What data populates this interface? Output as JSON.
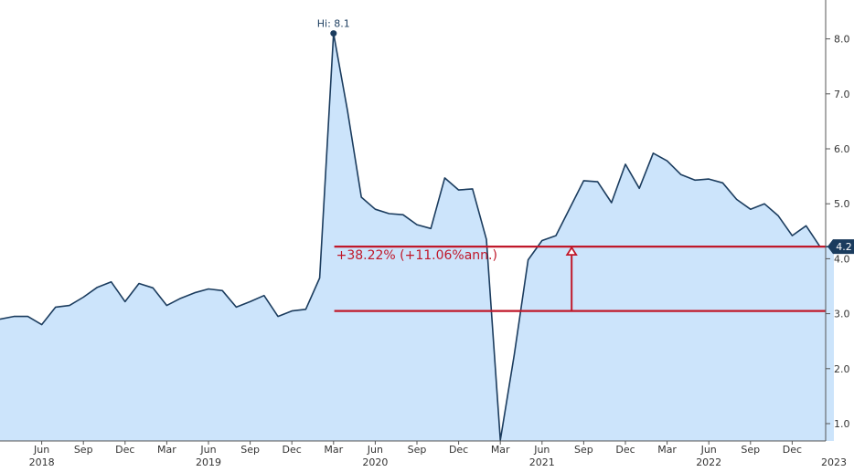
{
  "chart_data": {
    "type": "area",
    "x": [
      "2018-03",
      "2018-04",
      "2018-05",
      "2018-06",
      "2018-07",
      "2018-08",
      "2018-09",
      "2018-10",
      "2018-11",
      "2018-12",
      "2019-01",
      "2019-02",
      "2019-03",
      "2019-04",
      "2019-05",
      "2019-06",
      "2019-07",
      "2019-08",
      "2019-09",
      "2019-10",
      "2019-11",
      "2019-12",
      "2020-01",
      "2020-02",
      "2020-03",
      "2020-04",
      "2020-05",
      "2020-06",
      "2020-07",
      "2020-08",
      "2020-09",
      "2020-10",
      "2020-11",
      "2020-12",
      "2021-01",
      "2021-02",
      "2021-03",
      "2021-04",
      "2021-05",
      "2021-06",
      "2021-07",
      "2021-08",
      "2021-09",
      "2021-10",
      "2021-11",
      "2021-12",
      "2022-01",
      "2022-02",
      "2022-03",
      "2022-04",
      "2022-05",
      "2022-06",
      "2022-07",
      "2022-08",
      "2022-09",
      "2022-10",
      "2022-11",
      "2022-12",
      "2023-01",
      "2023-02",
      "2023-03"
    ],
    "series": [
      {
        "values": [
          2.9,
          2.95,
          2.95,
          2.8,
          3.12,
          3.15,
          3.3,
          3.48,
          3.58,
          3.22,
          3.55,
          3.47,
          3.15,
          3.28,
          3.38,
          3.45,
          3.42,
          3.12,
          3.22,
          3.33,
          2.95,
          3.05,
          3.08,
          3.65,
          8.1,
          6.7,
          5.12,
          4.9,
          4.82,
          4.8,
          4.62,
          4.55,
          5.47,
          5.25,
          5.27,
          4.35,
          0.7,
          2.25,
          3.98,
          4.33,
          4.42,
          4.92,
          5.42,
          5.4,
          5.02,
          5.72,
          5.28,
          5.92,
          5.78,
          5.53,
          5.43,
          5.45,
          5.38,
          5.08,
          4.9,
          5.0,
          4.78,
          4.42,
          4.6,
          4.22,
          4.22
        ]
      }
    ],
    "x_tick_labels": [
      "Jun",
      "Sep",
      "Dec",
      "Mar",
      "Jun",
      "Sep",
      "Dec",
      "Mar",
      "Jun",
      "Sep",
      "Dec",
      "Mar",
      "Jun",
      "Sep",
      "Dec",
      "Mar",
      "Jun",
      "Sep",
      "Dec"
    ],
    "x_tick_dates": [
      "2018-06",
      "2018-09",
      "2018-12",
      "2019-03",
      "2019-06",
      "2019-09",
      "2019-12",
      "2020-03",
      "2020-06",
      "2020-09",
      "2020-12",
      "2021-03",
      "2021-06",
      "2021-09",
      "2021-12",
      "2022-03",
      "2022-06",
      "2022-09",
      "2022-12"
    ],
    "year_labels": [
      "2018",
      "2019",
      "2020",
      "2021",
      "2022",
      "2023"
    ],
    "year_label_dates": [
      "2018-06",
      "2019-06",
      "2020-06",
      "2021-06",
      "2022-06",
      "2023-03"
    ],
    "y_ticks": [
      1.0,
      2.0,
      3.0,
      4.0,
      5.0,
      6.0,
      7.0,
      8.0
    ],
    "y_tick_labels": [
      "1.0",
      "2.0",
      "3.0",
      "4.0",
      "5.0",
      "6.0",
      "7.0",
      "8.0"
    ],
    "ylim": [
      0.7,
      8.7
    ],
    "y_axis_side": "right",
    "high_label": "Hi: 8.1",
    "high_value": 8.1,
    "high_date": "2020-03",
    "last_value_label": "4.2",
    "last_value": 4.22,
    "annotation": {
      "text": "+38.22% (+11.06%ann.)",
      "base_level": 3.05,
      "target_level": 4.22,
      "start_date": "2020-02",
      "arrow_date": "2021-08"
    },
    "colors": {
      "line": "#1b3c5e",
      "area_fill": "#cce4fb",
      "annotation": "#c0182a",
      "axis_text": "#333333",
      "last_badge_bg": "#1b3c5e",
      "last_badge_text": "#ffffff"
    }
  }
}
